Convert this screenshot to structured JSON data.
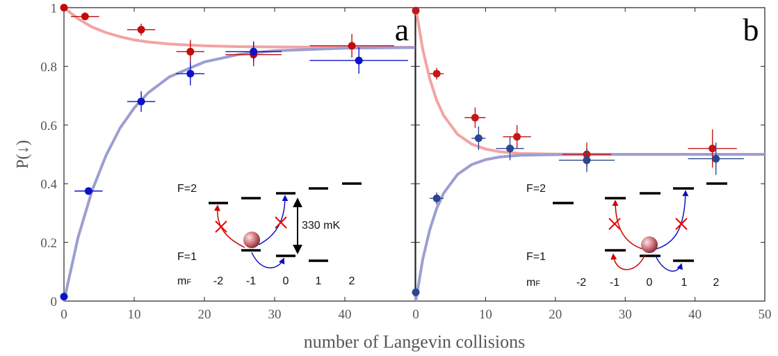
{
  "chart_data": [
    {
      "type": "scatter",
      "panel_label": "a",
      "ylabel": "P(↓)",
      "xlabel": "number of Langevin collisions",
      "xlim": [
        0,
        50
      ],
      "ylim": [
        0,
        1
      ],
      "xticks": [
        0,
        10,
        20,
        30,
        40
      ],
      "yticks": [
        0,
        0.2,
        0.4,
        0.6,
        0.8,
        1
      ],
      "series": [
        {
          "type": "line",
          "color": "#f4a3a3",
          "x": [
            0,
            2,
            4,
            6,
            8,
            10,
            12,
            15,
            20,
            25,
            30,
            40,
            50
          ],
          "values": [
            1.0,
            0.962,
            0.934,
            0.915,
            0.901,
            0.89,
            0.883,
            0.876,
            0.87,
            0.867,
            0.866,
            0.865,
            0.865
          ]
        },
        {
          "type": "line",
          "color": "#9c9ed2",
          "x": [
            0,
            2,
            4,
            6,
            8,
            10,
            12,
            15,
            20,
            25,
            30,
            40,
            50
          ],
          "values": [
            0.0,
            0.216,
            0.376,
            0.497,
            0.59,
            0.658,
            0.71,
            0.764,
            0.815,
            0.841,
            0.853,
            0.862,
            0.864
          ]
        },
        {
          "type": "scatter",
          "color": "#c40a0a",
          "x": [
            0,
            3,
            11,
            18,
            27,
            41
          ],
          "values": [
            1.0,
            0.97,
            0.925,
            0.85,
            0.84,
            0.87
          ],
          "x_err": [
            0,
            2,
            2,
            2,
            4,
            6
          ],
          "y_err": [
            0,
            0,
            0.02,
            0.04,
            0.04,
            0.04
          ]
        },
        {
          "type": "scatter",
          "color": "#0c14c8",
          "x": [
            0,
            3.5,
            11,
            18,
            27,
            42
          ],
          "values": [
            0.015,
            0.375,
            0.68,
            0.775,
            0.85,
            0.82
          ],
          "x_err": [
            0,
            2,
            2,
            2,
            4,
            7
          ],
          "y_err": [
            0,
            0.01,
            0.035,
            0.04,
            0.035,
            0.045
          ]
        }
      ],
      "inset": {
        "upper_label": "F=2",
        "lower_label": "F=1",
        "mf_label": "m",
        "mf_sub": "F",
        "mf_values": [
          "-2",
          "-1",
          "0",
          "1",
          "2"
        ],
        "gap_label": "330 mK"
      }
    },
    {
      "type": "scatter",
      "panel_label": "b",
      "xlim": [
        0,
        50
      ],
      "ylim": [
        0,
        1
      ],
      "xticks": [
        0,
        10,
        20,
        30,
        40,
        50
      ],
      "yticks": [
        0,
        0.2,
        0.4,
        0.6,
        0.8,
        1
      ],
      "series": [
        {
          "type": "line",
          "color": "#f4a3a3",
          "x": [
            0,
            1,
            2,
            3,
            4,
            6,
            8,
            10,
            12,
            15,
            20,
            30,
            50
          ],
          "values": [
            1.0,
            0.858,
            0.757,
            0.684,
            0.632,
            0.568,
            0.535,
            0.518,
            0.509,
            0.503,
            0.501,
            0.5,
            0.5
          ]
        },
        {
          "type": "line",
          "color": "#9c9ed2",
          "x": [
            0,
            1,
            2,
            3,
            4,
            6,
            8,
            10,
            12,
            15,
            20,
            30,
            50
          ],
          "values": [
            0.0,
            0.142,
            0.243,
            0.316,
            0.368,
            0.432,
            0.465,
            0.482,
            0.491,
            0.497,
            0.499,
            0.5,
            0.5
          ]
        },
        {
          "type": "scatter",
          "color": "#c41818",
          "x": [
            0,
            3,
            8.5,
            14.5,
            24.5,
            42.5
          ],
          "values": [
            0.99,
            0.775,
            0.625,
            0.56,
            0.5,
            0.52
          ],
          "x_err": [
            0,
            1,
            1.5,
            2,
            3.5,
            3.5
          ],
          "y_err": [
            0,
            0.02,
            0.035,
            0.04,
            0.04,
            0.065
          ]
        },
        {
          "type": "scatter",
          "color": "#2b4590",
          "x": [
            0,
            3,
            9,
            13.5,
            24.5,
            43
          ],
          "values": [
            0.03,
            0.35,
            0.555,
            0.52,
            0.48,
            0.485
          ],
          "x_err": [
            0,
            1,
            1,
            2,
            4,
            4
          ],
          "y_err": [
            0,
            0.02,
            0.04,
            0.04,
            0.04,
            0.055
          ]
        }
      ],
      "inset": {
        "upper_label": "F=2",
        "lower_label": "F=1",
        "mf_label": "m",
        "mf_sub": "F",
        "mf_values": [
          "-2",
          "-1",
          "0",
          "1",
          "2"
        ]
      }
    }
  ]
}
